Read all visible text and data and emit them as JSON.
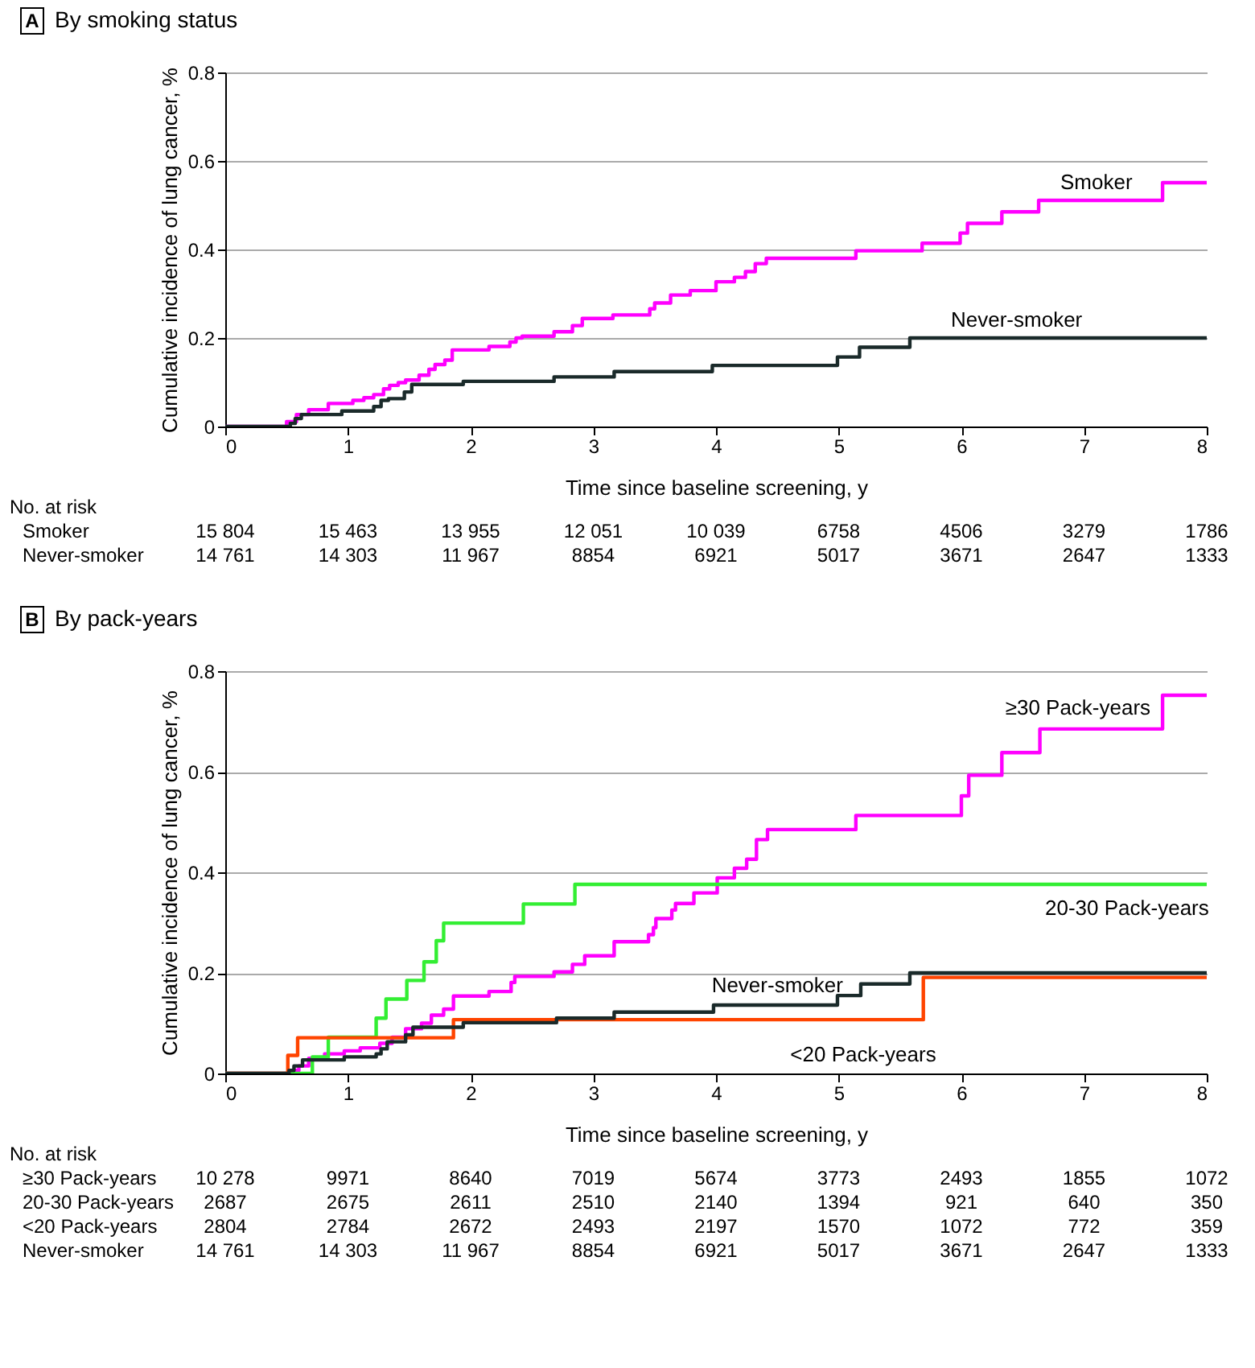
{
  "chart_data": [
    {
      "type": "step",
      "title": "A By smoking status",
      "xlabel": "Time since baseline screening, y",
      "ylabel": "Cumulative incidence of lung cancer, %",
      "xlim": [
        0,
        8
      ],
      "ylim": [
        0,
        0.8
      ],
      "xticks": [
        0,
        1,
        2,
        3,
        4,
        5,
        6,
        7,
        8
      ],
      "yticks": [
        0,
        0.2,
        0.4,
        0.6,
        0.8
      ],
      "grid": "y",
      "line_style": "solid",
      "series": [
        {
          "name": "Smoker",
          "color": "#ff00ff",
          "x": [
            0,
            0.5,
            0.58,
            0.68,
            0.84,
            1.04,
            1.13,
            1.21,
            1.29,
            1.34,
            1.41,
            1.47,
            1.58,
            1.66,
            1.71,
            1.79,
            1.85,
            2.15,
            2.32,
            2.37,
            2.42,
            2.68,
            2.83,
            2.91,
            3.16,
            3.46,
            3.5,
            3.63,
            3.79,
            4.0,
            4.15,
            4.24,
            4.32,
            4.41,
            5.14,
            5.68,
            5.99,
            6.05,
            6.33,
            6.63,
            7.64,
            8.0
          ],
          "values": [
            0,
            0.011,
            0.027,
            0.038,
            0.052,
            0.059,
            0.065,
            0.072,
            0.085,
            0.093,
            0.099,
            0.105,
            0.116,
            0.129,
            0.14,
            0.15,
            0.173,
            0.181,
            0.191,
            0.2,
            0.204,
            0.214,
            0.228,
            0.244,
            0.252,
            0.266,
            0.279,
            0.297,
            0.307,
            0.327,
            0.337,
            0.35,
            0.368,
            0.38,
            0.397,
            0.414,
            0.437,
            0.459,
            0.485,
            0.511,
            0.551,
            0.551
          ]
        },
        {
          "name": "Never-smoker",
          "color": "#1a2a2a",
          "x": [
            0,
            0.53,
            0.57,
            0.62,
            0.95,
            1.21,
            1.27,
            1.33,
            1.46,
            1.52,
            1.94,
            2.68,
            3.17,
            3.97,
            4.99,
            5.17,
            5.58,
            8.0
          ],
          "values": [
            0,
            0.007,
            0.018,
            0.027,
            0.035,
            0.045,
            0.059,
            0.063,
            0.078,
            0.095,
            0.102,
            0.112,
            0.124,
            0.138,
            0.157,
            0.179,
            0.2,
            0.2
          ]
        }
      ],
      "annotations": [
        "No. at risk",
        "Smoker\t15 804\t15 463\t13 955\t12 051\t10 039\t6758\t4506\t3279\t1786",
        "Never-smoker\t14 761\t14 303\t11 967\t8854\t6921\t5017\t3671\t2647\t1333"
      ]
    },
    {
      "type": "step",
      "title": "B By pack-years",
      "xlabel": "Time since baseline screening, y",
      "ylabel": "Cumulative incidence of lung cancer, %",
      "xlim": [
        0,
        8
      ],
      "ylim": [
        0,
        0.8
      ],
      "xticks": [
        0,
        1,
        2,
        3,
        4,
        5,
        6,
        7,
        8
      ],
      "yticks": [
        0,
        0.2,
        0.4,
        0.6,
        0.8
      ],
      "grid": "y",
      "line_style": "solid",
      "series": [
        {
          "name": "≥30 Pack-years",
          "color": "#ff00ff",
          "x": [
            0,
            0.52,
            0.6,
            0.68,
            0.81,
            0.97,
            1.1,
            1.26,
            1.36,
            1.47,
            1.6,
            1.68,
            1.78,
            1.86,
            2.15,
            2.33,
            2.36,
            2.68,
            2.83,
            2.93,
            3.17,
            3.45,
            3.49,
            3.51,
            3.64,
            3.67,
            3.82,
            4.01,
            4.15,
            4.25,
            4.33,
            4.42,
            5.14,
            6.0,
            6.06,
            6.33,
            6.64,
            7.64,
            8.0
          ],
          "values": [
            0,
            0.006,
            0.015,
            0.03,
            0.039,
            0.045,
            0.051,
            0.06,
            0.072,
            0.089,
            0.1,
            0.116,
            0.128,
            0.154,
            0.163,
            0.181,
            0.193,
            0.202,
            0.217,
            0.234,
            0.262,
            0.276,
            0.29,
            0.308,
            0.325,
            0.338,
            0.359,
            0.389,
            0.408,
            0.426,
            0.465,
            0.485,
            0.513,
            0.552,
            0.593,
            0.638,
            0.685,
            0.752,
            0.752
          ]
        },
        {
          "name": "20-30 Pack-years",
          "color": "#33ee33",
          "x": [
            0,
            0.71,
            0.84,
            1.23,
            1.31,
            1.48,
            1.62,
            1.72,
            1.78,
            2.43,
            2.85,
            8.0
          ],
          "values": [
            0,
            0.033,
            0.072,
            0.11,
            0.148,
            0.185,
            0.222,
            0.264,
            0.299,
            0.337,
            0.376,
            0.376
          ]
        },
        {
          "name": "<20 Pack-years",
          "color": "#ff4400",
          "x": [
            0,
            0.51,
            0.59,
            1.86,
            5.69,
            8.0
          ],
          "values": [
            0,
            0.036,
            0.071,
            0.107,
            0.191,
            0.191
          ]
        },
        {
          "name": "Never-smoker",
          "color": "#1a2a2a",
          "x": [
            0,
            0.52,
            0.56,
            0.63,
            0.97,
            1.23,
            1.27,
            1.32,
            1.47,
            1.53,
            1.94,
            2.7,
            3.17,
            3.98,
            4.99,
            5.18,
            5.58,
            8.0
          ],
          "values": [
            0,
            0.006,
            0.015,
            0.027,
            0.033,
            0.039,
            0.049,
            0.063,
            0.077,
            0.092,
            0.101,
            0.11,
            0.122,
            0.136,
            0.155,
            0.178,
            0.2,
            0.2
          ]
        }
      ],
      "annotations": [
        "No. at risk",
        "≥30 Pack-years\t10 278\t9971\t8640\t7019\t5674\t3773\t2493\t1855\t1072",
        "20-30 Pack-years\t2687\t2675\t2611\t2510\t2140\t1394\t921\t640\t350",
        "<20 Pack-years\t2804\t2784\t2672\t2493\t2197\t1570\t1072\t772\t359",
        "Never-smoker\t14 761\t14 303\t11 967\t8854\t6921\t5017\t3671\t2647\t1333"
      ]
    }
  ]
}
